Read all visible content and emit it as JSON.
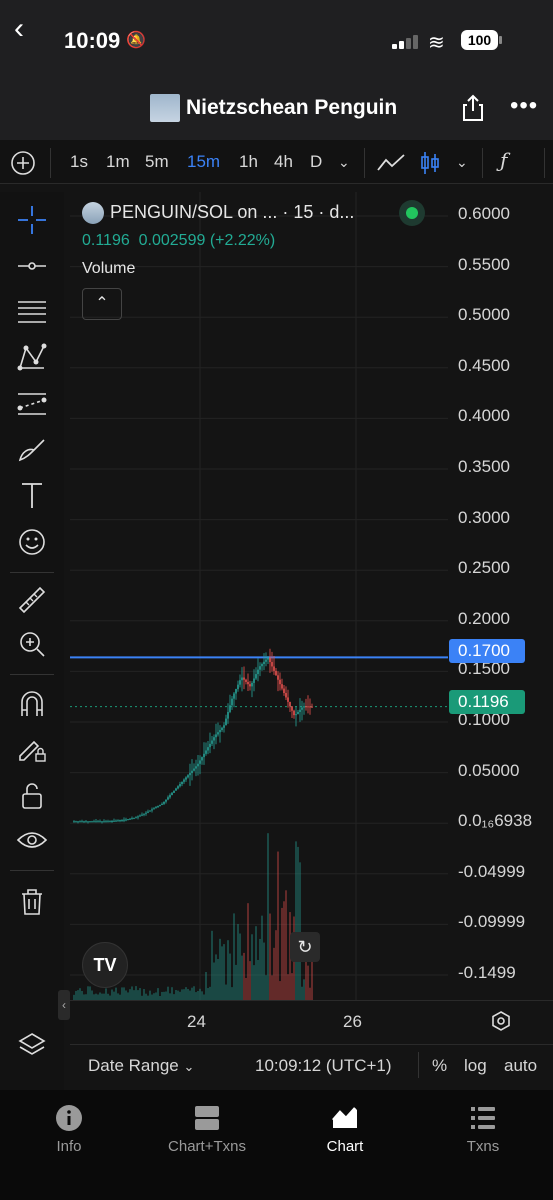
{
  "status_bar": {
    "time": "10:09",
    "battery": "100"
  },
  "header": {
    "title": "Nietzschean Penguin"
  },
  "toolbar": {
    "intervals": [
      "1s",
      "1m",
      "5m",
      "15m",
      "1h",
      "4h",
      "D"
    ],
    "active_interval": "15m"
  },
  "legend": {
    "title": "PENGUIN/SOL on ... · 15 · d...",
    "price": "0.1196",
    "change": "0.002599 (+2.22%)",
    "volume_label": "Volume"
  },
  "price_axis": {
    "labels": [
      "0.6000",
      "0.5500",
      "0.5000",
      "0.4500",
      "0.4000",
      "0.3500",
      "0.3000",
      "0.2500",
      "0.2000",
      "0.1500",
      "0.1000",
      "0.05000",
      "0.0₁₆6938",
      "-0.04999",
      "-0.09999",
      "-0.1499"
    ],
    "line_tag": "0.1700",
    "current_tag": "0.1196",
    "line_color": "#3b82f6",
    "current_color": "#1a9a78"
  },
  "time_axis": {
    "labels": [
      "24",
      "26"
    ]
  },
  "bottom_bar": {
    "date_range": "Date Range",
    "clock": "10:09:12 (UTC+1)",
    "percent": "%",
    "log": "log",
    "auto": "auto"
  },
  "tabs": [
    {
      "label": "Info",
      "icon": "info-icon"
    },
    {
      "label": "Chart+Txns",
      "icon": "split-view-icon"
    },
    {
      "label": "Chart",
      "icon": "chart-icon",
      "active": true
    },
    {
      "label": "Txns",
      "icon": "list-icon"
    }
  ],
  "chart_data": {
    "type": "candlestick",
    "ylim": [
      -0.17,
      0.62
    ],
    "x_ticks": [
      "24",
      "26"
    ],
    "horizontal_line": 0.17,
    "last_price": 0.1196,
    "series": [
      {
        "values": [
          0.002,
          0.002,
          0.002,
          0.002,
          0.002,
          0.003,
          0.004,
          0.006,
          0.01,
          0.015,
          0.02,
          0.03,
          0.04,
          0.05,
          0.06,
          0.075,
          0.09,
          0.1,
          0.13,
          0.15,
          0.14,
          0.16,
          0.17,
          0.15,
          0.13,
          0.11,
          0.12,
          0.1196
        ]
      }
    ]
  }
}
